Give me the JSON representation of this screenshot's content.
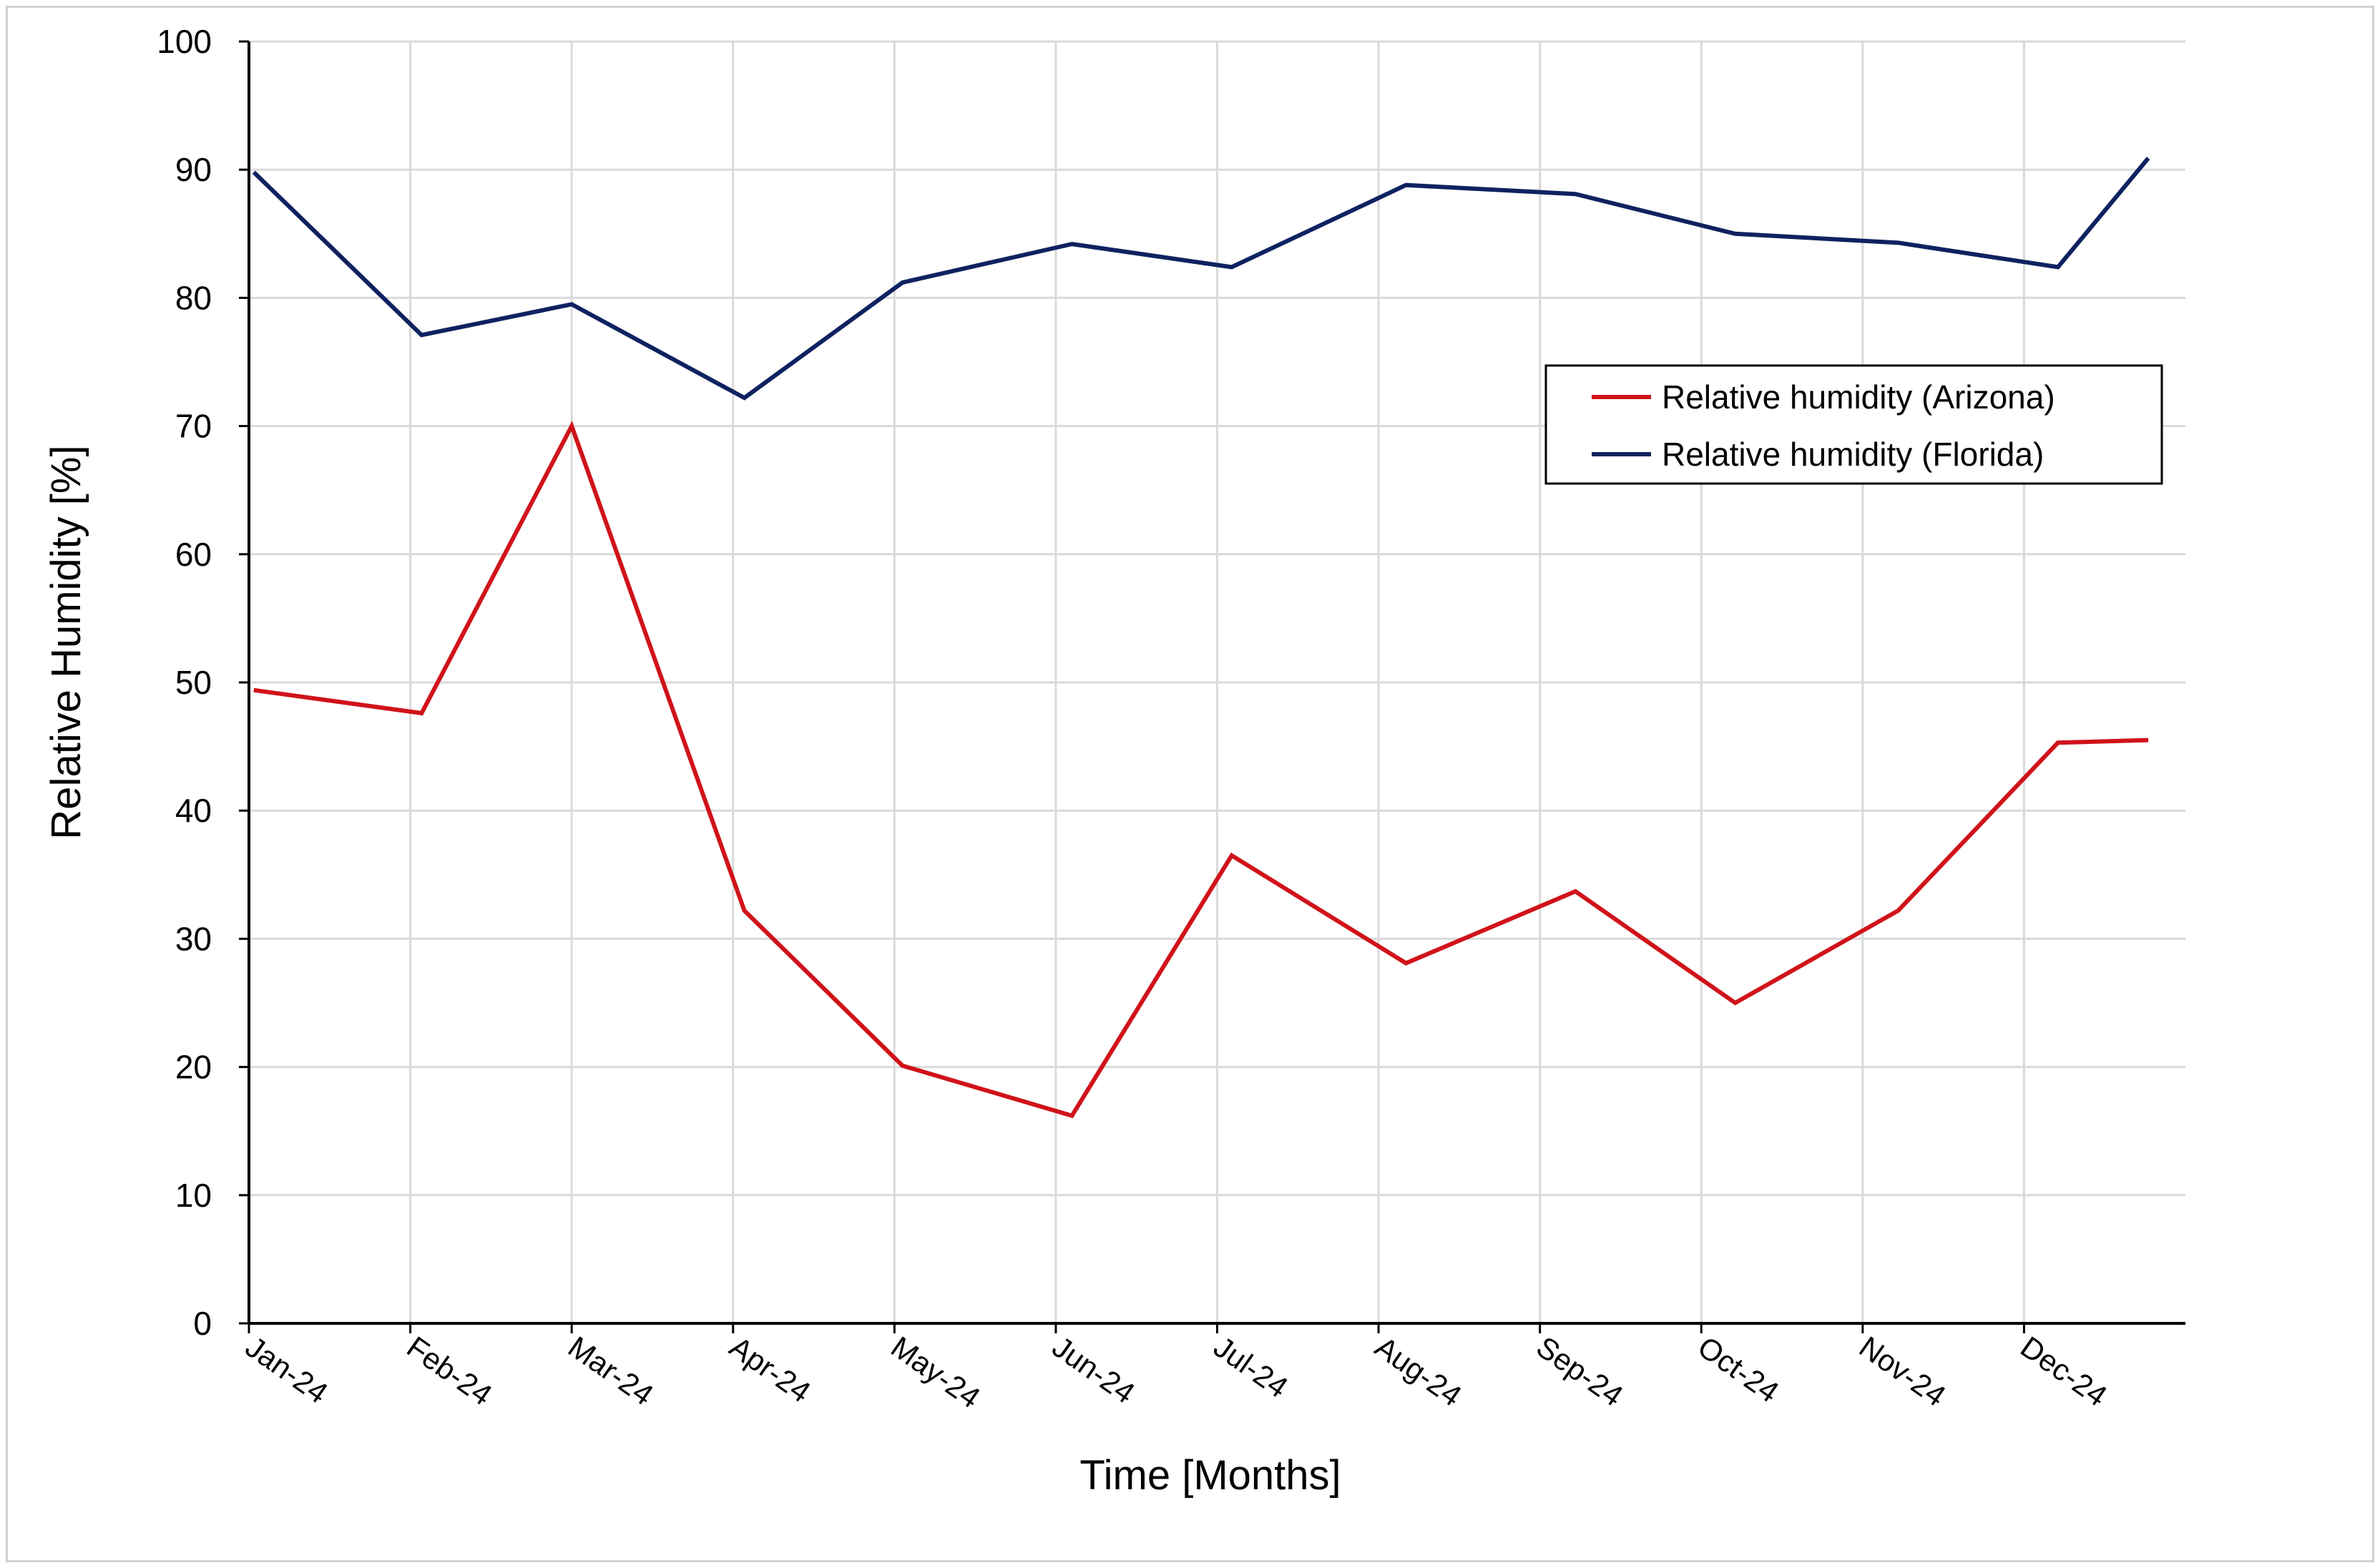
{
  "chart_data": {
    "type": "line",
    "title": "",
    "xlabel": "Time [Months]",
    "ylabel": "Relative Humidity [%]",
    "ylim": [
      0,
      100
    ],
    "yticks": [
      "0",
      "10",
      "20",
      "30",
      "40",
      "50",
      "60",
      "70",
      "80",
      "90",
      "100"
    ],
    "categories": [
      "Jan-24",
      "Feb-24",
      "Mar-24",
      "Apr-24",
      "May-24",
      "Jun-24",
      "Jul-24",
      "Aug-24",
      "Sep-24",
      "Oct-24",
      "Nov-24",
      "Dec-24"
    ],
    "grid": true,
    "legend_position": "right",
    "series": [
      {
        "name": "Relative humidity (Arizona)",
        "color": "#d0131a",
        "points": [
          {
            "x": 0.03,
            "y": 49.4
          },
          {
            "x": 1.07,
            "y": 47.6
          },
          {
            "x": 2.0,
            "y": 70.0
          },
          {
            "x": 3.07,
            "y": 32.2
          },
          {
            "x": 4.05,
            "y": 20.1
          },
          {
            "x": 5.1,
            "y": 16.2
          },
          {
            "x": 6.09,
            "y": 36.5
          },
          {
            "x": 7.17,
            "y": 28.1
          },
          {
            "x": 8.22,
            "y": 33.7
          },
          {
            "x": 9.21,
            "y": 25.0
          },
          {
            "x": 10.22,
            "y": 32.2
          },
          {
            "x": 11.21,
            "y": 45.3
          },
          {
            "x": 11.77,
            "y": 45.5
          }
        ]
      },
      {
        "name": "Relative humidity (Florida)",
        "color": "#0e2260",
        "points": [
          {
            "x": 0.03,
            "y": 89.8
          },
          {
            "x": 1.07,
            "y": 77.1
          },
          {
            "x": 2.0,
            "y": 79.5
          },
          {
            "x": 3.07,
            "y": 72.2
          },
          {
            "x": 4.05,
            "y": 81.2
          },
          {
            "x": 5.1,
            "y": 84.2
          },
          {
            "x": 6.09,
            "y": 82.4
          },
          {
            "x": 7.17,
            "y": 88.8
          },
          {
            "x": 8.22,
            "y": 88.1
          },
          {
            "x": 9.21,
            "y": 85.0
          },
          {
            "x": 10.22,
            "y": 84.3
          },
          {
            "x": 11.21,
            "y": 82.4
          },
          {
            "x": 11.77,
            "y": 90.9
          }
        ]
      }
    ]
  }
}
